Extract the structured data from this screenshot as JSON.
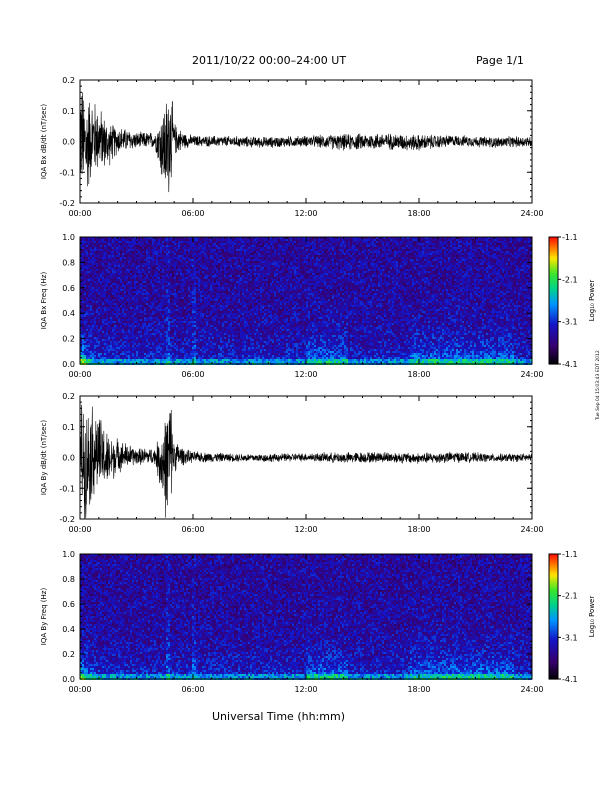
{
  "header": {
    "title": "2011/10/22   00:00–24:00 UT",
    "page": "Page 1/1"
  },
  "footer": {
    "xlabel": "Universal Time (hh:mm)",
    "stamp": "Tue Sep 04 15:03:43 EDT 2012"
  },
  "colors": {
    "line": "#000000",
    "background": "#ffffff"
  },
  "chart_data": [
    {
      "type": "line",
      "ylabel": "IQA Bx dB/dt (nT/sec)",
      "x_ticks": [
        "00:00",
        "06:00",
        "12:00",
        "18:00",
        "24:00"
      ],
      "xlim": [
        0,
        24
      ],
      "ylim": [
        -0.2,
        0.2
      ],
      "y_ticks": [
        "-0.2",
        "-0.1",
        "0.0",
        "0.1",
        "0.2"
      ],
      "series": [
        {
          "x": [
            0.0,
            0.3,
            0.6,
            1.0,
            1.5,
            2.0,
            3.0,
            4.0,
            4.6,
            4.8,
            5.0,
            5.5,
            6.0,
            8.0,
            10.0,
            12.0,
            14.0,
            16.0,
            18.0,
            20.0,
            22.0,
            24.0
          ],
          "y": [
            0.18,
            -0.15,
            0.1,
            0.08,
            -0.08,
            0.04,
            0.02,
            0.03,
            -0.2,
            0.15,
            0.05,
            0.02,
            0.01,
            0.0,
            -0.02,
            0.01,
            -0.02,
            0.01,
            -0.03,
            0.02,
            -0.02,
            0.0
          ],
          "amplitude": [
            0.2,
            0.2,
            0.15,
            0.12,
            0.08,
            0.05,
            0.03,
            0.03,
            0.2,
            0.2,
            0.06,
            0.03,
            0.02,
            0.02,
            0.02,
            0.02,
            0.03,
            0.03,
            0.03,
            0.02,
            0.02,
            0.02
          ]
        }
      ]
    },
    {
      "type": "heatmap",
      "ylabel": "IQA Bx Freq (Hz)",
      "x_ticks": [
        "00:00",
        "06:00",
        "12:00",
        "18:00",
        "24:00"
      ],
      "xlim": [
        0,
        24
      ],
      "ylim": [
        0,
        1.0
      ],
      "y_ticks": [
        "0.0",
        "0.2",
        "0.4",
        "0.6",
        "0.8",
        "1.0"
      ],
      "colorbar": {
        "label": "Log₁₀ Power",
        "ticks": [
          "-1.1",
          "-2.1",
          "-3.1",
          "-4.1"
        ],
        "range": [
          -4.1,
          -1.1
        ]
      },
      "features": {
        "enhanced_low_freq_bands": [
          [
            12.0,
            14.2
          ],
          [
            17.5,
            23.0
          ]
        ],
        "spikes_at_hours": [
          4.6,
          6.0
        ]
      }
    },
    {
      "type": "line",
      "ylabel": "IQA By dB/dt (nT/sec)",
      "x_ticks": [
        "00:00",
        "06:00",
        "12:00",
        "18:00",
        "24:00"
      ],
      "xlim": [
        0,
        24
      ],
      "ylim": [
        -0.2,
        0.2
      ],
      "y_ticks": [
        "-0.2",
        "-0.1",
        "0.0",
        "0.1",
        "0.2"
      ],
      "series": [
        {
          "x": [
            0.0,
            0.3,
            0.6,
            1.0,
            1.5,
            2.0,
            3.0,
            4.0,
            4.6,
            4.8,
            5.0,
            5.5,
            6.0,
            8.0,
            10.0,
            12.0,
            14.0,
            16.0,
            18.0,
            20.0,
            22.0,
            24.0
          ],
          "y": [
            0.2,
            -0.18,
            0.12,
            0.1,
            -0.09,
            0.05,
            0.02,
            0.03,
            -0.2,
            0.16,
            0.05,
            0.02,
            0.01,
            0.0,
            -0.01,
            0.01,
            -0.01,
            0.01,
            -0.02,
            0.01,
            -0.01,
            0.0
          ],
          "amplitude": [
            0.2,
            0.2,
            0.18,
            0.14,
            0.1,
            0.06,
            0.03,
            0.03,
            0.2,
            0.2,
            0.06,
            0.03,
            0.02,
            0.015,
            0.015,
            0.015,
            0.02,
            0.02,
            0.02,
            0.02,
            0.015,
            0.015
          ]
        }
      ]
    },
    {
      "type": "heatmap",
      "ylabel": "IQA By Freq (Hz)",
      "x_ticks": [
        "00:00",
        "06:00",
        "12:00",
        "18:00",
        "24:00"
      ],
      "xlim": [
        0,
        24
      ],
      "ylim": [
        0,
        1.0
      ],
      "y_ticks": [
        "0.0",
        "0.2",
        "0.4",
        "0.6",
        "0.8",
        "1.0"
      ],
      "colorbar": {
        "label": "Log₁₀ Power",
        "ticks": [
          "-1.1",
          "-2.1",
          "-3.1",
          "-4.1"
        ],
        "range": [
          -4.1,
          -1.1
        ]
      },
      "features": {
        "enhanced_low_freq_bands": [
          [
            12.0,
            14.2
          ],
          [
            17.5,
            23.0
          ]
        ],
        "spikes_at_hours": [
          4.6,
          6.0
        ]
      }
    }
  ]
}
